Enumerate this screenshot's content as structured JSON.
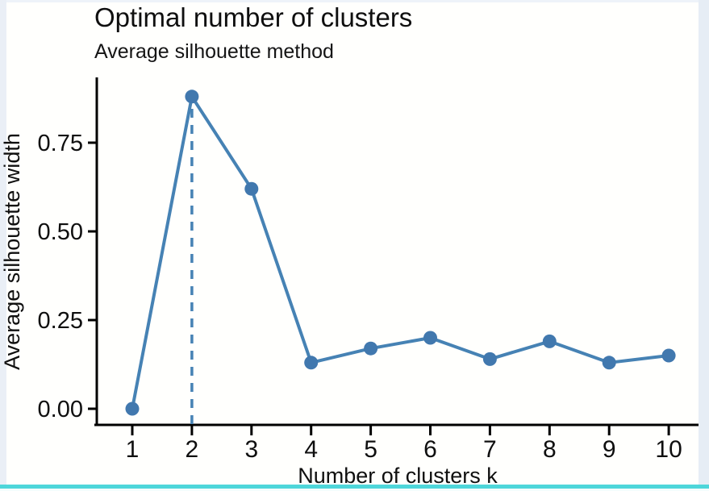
{
  "colors": {
    "series_line": "#4682b4",
    "marker": "#4178ae",
    "vline_dashed": "#4682b4",
    "axis": "#000000",
    "text": "#0f0f0f",
    "frame_strip": "#eaeff6",
    "bottom_accent": "#4ed6da",
    "background": "#fffffd"
  },
  "chart_data": {
    "type": "line",
    "title": "Optimal number of clusters",
    "subtitle": "Average silhouette method",
    "xlabel": "Number of clusters k",
    "ylabel": "Average silhouette width",
    "x": [
      1,
      2,
      3,
      4,
      5,
      6,
      7,
      8,
      9,
      10
    ],
    "series": [
      {
        "name": "average silhouette width",
        "values": [
          0.0,
          0.88,
          0.62,
          0.13,
          0.17,
          0.2,
          0.14,
          0.19,
          0.13,
          0.15
        ]
      }
    ],
    "x_tick_labels": [
      "1",
      "2",
      "3",
      "4",
      "5",
      "6",
      "7",
      "8",
      "9",
      "10"
    ],
    "y_tick_labels": [
      "0.00",
      "0.25",
      "0.50",
      "0.75"
    ],
    "ylim": [
      -0.05,
      0.93
    ],
    "xlim": [
      0.4,
      10.5
    ],
    "grid": false,
    "legend": false,
    "marker": "circle",
    "annotations": [
      {
        "type": "vline",
        "x": 2,
        "style": "dashed",
        "meaning": "optimal-k"
      }
    ]
  }
}
